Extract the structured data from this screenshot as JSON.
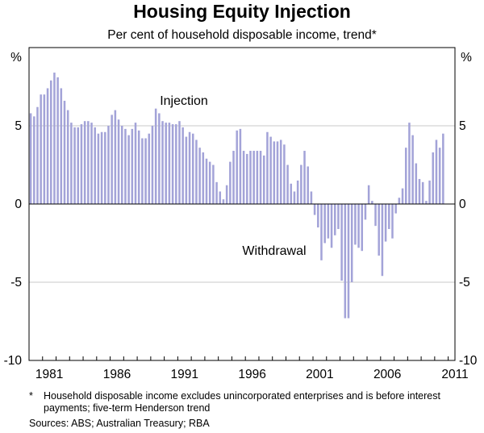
{
  "chart_data": {
    "type": "bar",
    "title": "Housing Equity Injection",
    "subtitle": "Per cent of household disposable income, trend*",
    "unit_left": "%",
    "unit_right": "%",
    "ylim": [
      -10,
      10
    ],
    "yticks": [
      -10,
      -5,
      0,
      5
    ],
    "x_start": 1980.0,
    "x_end": 2011.5,
    "xticks": [
      "1981",
      "1986",
      "1991",
      "1996",
      "2001",
      "2006",
      "2011"
    ],
    "annotations": {
      "positive": "Injection",
      "negative": "Withdrawal"
    },
    "grid": true,
    "bar_color": "#a3a3d8",
    "series": [
      {
        "frequency": "quarterly",
        "start_quarter": "1980-Q1",
        "values": [
          5.8,
          5.6,
          6.2,
          7.0,
          7.0,
          7.4,
          7.9,
          8.4,
          8.1,
          7.4,
          6.6,
          6.0,
          5.2,
          4.9,
          4.9,
          5.1,
          5.3,
          5.3,
          5.2,
          4.9,
          4.5,
          4.6,
          4.6,
          5.0,
          5.7,
          6.0,
          5.4,
          5.0,
          4.8,
          4.4,
          4.8,
          5.2,
          4.7,
          4.2,
          4.2,
          4.5,
          5.0,
          6.1,
          5.8,
          5.3,
          5.2,
          5.2,
          5.1,
          5.1,
          5.3,
          4.9,
          4.3,
          4.6,
          4.5,
          4.1,
          3.6,
          3.3,
          2.9,
          2.7,
          2.5,
          1.4,
          0.8,
          0.3,
          1.2,
          2.7,
          3.4,
          4.7,
          4.8,
          3.4,
          3.2,
          3.4,
          3.4,
          3.4,
          3.4,
          3.1,
          4.6,
          4.3,
          4.0,
          4.0,
          4.1,
          3.8,
          2.5,
          1.3,
          0.8,
          1.5,
          2.5,
          3.4,
          2.4,
          0.8,
          -0.7,
          -1.5,
          -3.6,
          -2.5,
          -2.2,
          -2.8,
          -2.0,
          -1.6,
          -4.9,
          -7.3,
          -7.3,
          -5.0,
          -2.6,
          -2.8,
          -3.0,
          -1.0,
          1.2,
          0.2,
          -1.4,
          -3.3,
          -4.6,
          -2.4,
          -1.6,
          -2.2,
          -0.6,
          0.4,
          1.0,
          3.6,
          5.2,
          4.4,
          2.6,
          1.6,
          1.4,
          0.2,
          1.5,
          3.3,
          4.1,
          3.6,
          4.5
        ]
      }
    ]
  },
  "footnotes": {
    "star": "*",
    "note": "Household disposable income excludes unincorporated enterprises and is before interest payments; five-term Henderson trend",
    "sources": "Sources: ABS; Australian Treasury; RBA"
  }
}
